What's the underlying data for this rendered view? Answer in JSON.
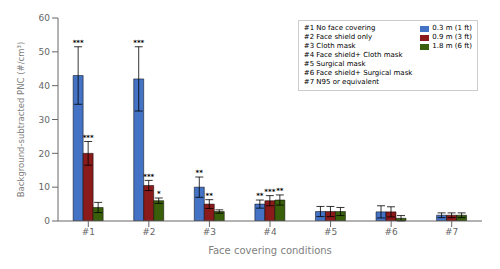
{
  "chart_data": {
    "type": "bar",
    "categories": [
      "#1",
      "#2",
      "#3",
      "#4",
      "#5",
      "#6",
      "#7"
    ],
    "series": [
      {
        "name": "0.3 m (1 ft)",
        "color": "#4472C4",
        "values": [
          43.0,
          42.0,
          10.0,
          5.0,
          2.8,
          2.7,
          1.7
        ],
        "errors": [
          8.5,
          9.5,
          3.0,
          1.2,
          1.5,
          1.8,
          0.7
        ],
        "stars": [
          "***",
          "***",
          "**",
          "**",
          null,
          null,
          null
        ]
      },
      {
        "name": "0.9 m (3 ft)",
        "color": "#8B1A1A",
        "values": [
          20.0,
          10.5,
          5.0,
          6.0,
          2.8,
          2.7,
          1.7
        ],
        "errors": [
          3.5,
          1.5,
          1.3,
          1.5,
          1.5,
          1.5,
          0.7
        ],
        "stars": [
          "***",
          "***",
          "**",
          "***",
          null,
          null,
          null
        ]
      },
      {
        "name": "1.8 m (6 ft)",
        "color": "#3A5F0B",
        "values": [
          4.0,
          6.0,
          2.8,
          6.2,
          2.8,
          0.8,
          1.7
        ],
        "errors": [
          1.5,
          0.8,
          0.5,
          1.5,
          1.2,
          0.8,
          0.7
        ],
        "stars": [
          null,
          "*",
          null,
          "**",
          null,
          null,
          null
        ]
      }
    ],
    "xlabel": "Face covering conditions",
    "ylabel": "Background-subtracted PNC (#/cm³)",
    "ylim": [
      0,
      60
    ],
    "yticks": [
      0,
      10,
      20,
      30,
      40,
      50,
      60
    ],
    "grid": false,
    "legend": "upper right",
    "annotations": [
      "#1 No face covering",
      "#2 Face shield only",
      "#3 Cloth mask",
      "#4 Face shield+ Cloth mask",
      "#5 Surgical mask",
      "#6 Face shield+ Surgical mask",
      "#7 N95 or equivalent"
    ]
  }
}
